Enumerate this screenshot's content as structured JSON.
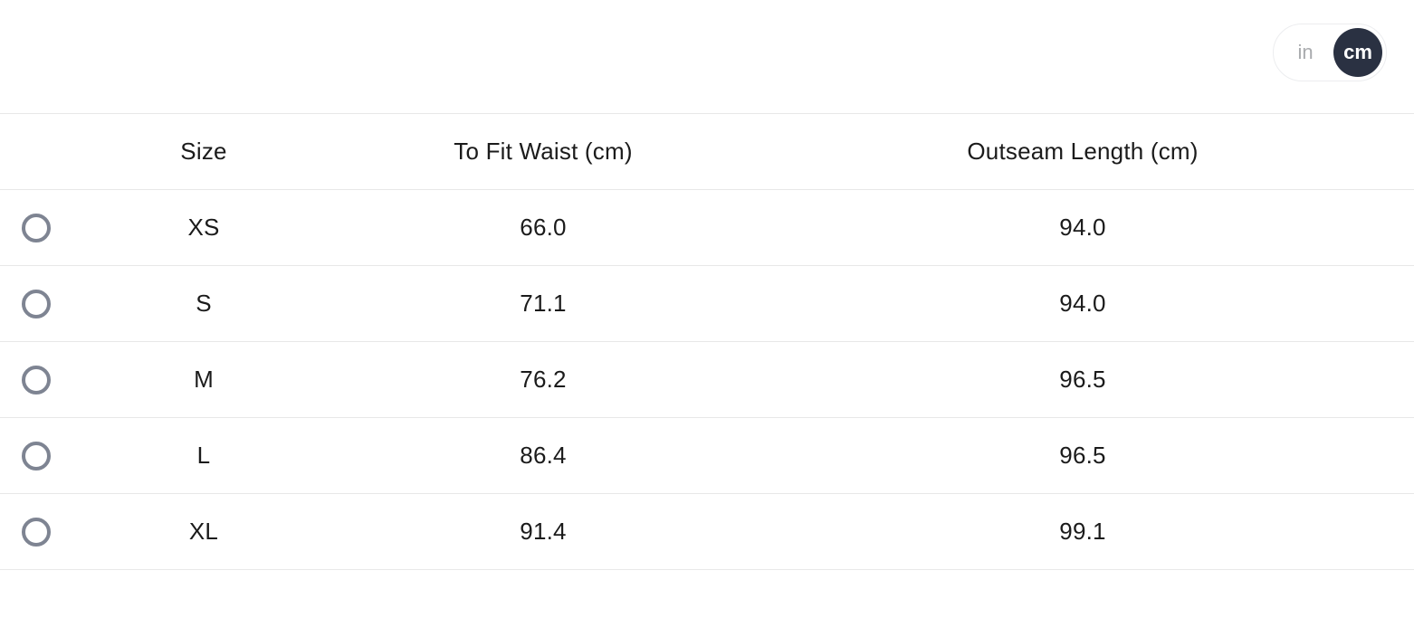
{
  "unit_toggle": {
    "options": [
      {
        "label": "in",
        "selected": false
      },
      {
        "label": "cm",
        "selected": true
      }
    ]
  },
  "size_chart": {
    "columns": [
      {
        "label": "Size"
      },
      {
        "label": "To Fit Waist (cm)"
      },
      {
        "label": "Outseam Length (cm)"
      }
    ],
    "rows": [
      {
        "size": "XS",
        "to_fit_waist_cm": "66.0",
        "outseam_length_cm": "94.0",
        "selected": false
      },
      {
        "size": "S",
        "to_fit_waist_cm": "71.1",
        "outseam_length_cm": "94.0",
        "selected": false
      },
      {
        "size": "M",
        "to_fit_waist_cm": "76.2",
        "outseam_length_cm": "96.5",
        "selected": false
      },
      {
        "size": "L",
        "to_fit_waist_cm": "86.4",
        "outseam_length_cm": "96.5",
        "selected": false
      },
      {
        "size": "XL",
        "to_fit_waist_cm": "91.4",
        "outseam_length_cm": "99.1",
        "selected": false
      }
    ]
  },
  "colors": {
    "selected_unit_bg": "#2a3142",
    "selected_unit_text": "#ffffff",
    "unselected_unit_text": "#a9abae",
    "divider": "#e8e8e8",
    "radio_border": "#7e8492",
    "text": "#1b1b1b"
  }
}
